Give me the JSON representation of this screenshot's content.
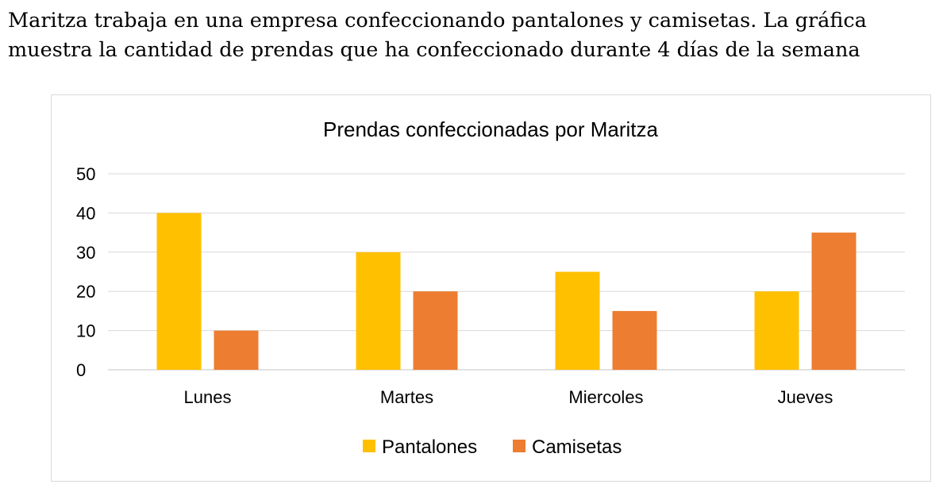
{
  "intro": {
    "line1": "Maritza trabaja en una empresa confeccionando pantalones y camisetas. La gráfica",
    "line2": "muestra la cantidad de prendas que ha confeccionado durante 4 días de la semana"
  },
  "chart_data": {
    "type": "bar",
    "title": "Prendas confeccionadas por Maritza",
    "xlabel": "",
    "ylabel": "",
    "categories": [
      "Lunes",
      "Martes",
      "Miercoles",
      "Jueves"
    ],
    "series": [
      {
        "name": "Pantalones",
        "color": "#FFC000",
        "values": [
          40,
          30,
          25,
          20
        ]
      },
      {
        "name": "Camisetas",
        "color": "#ED7D31",
        "values": [
          10,
          20,
          15,
          35
        ]
      }
    ],
    "ylim": [
      0,
      50
    ],
    "yticks": [
      0,
      10,
      20,
      30,
      40,
      50
    ],
    "grid": true,
    "gridColor": "#d9d9d9",
    "legend": "bottom"
  }
}
